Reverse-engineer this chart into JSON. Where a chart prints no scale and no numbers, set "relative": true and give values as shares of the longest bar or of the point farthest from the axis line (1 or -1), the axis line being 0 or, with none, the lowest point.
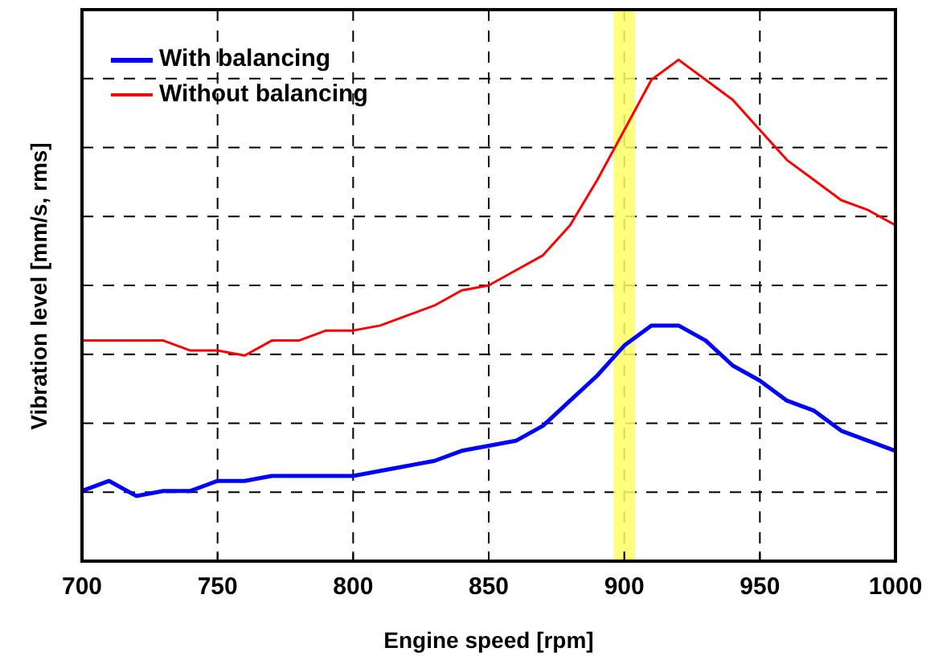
{
  "chart_data": {
    "type": "line",
    "relative": true,
    "xlabel": "Engine speed [rpm]",
    "ylabel": "Vibration level [mm/s, rms]",
    "x": [
      700,
      710,
      720,
      730,
      740,
      750,
      760,
      770,
      780,
      790,
      800,
      810,
      820,
      830,
      840,
      850,
      860,
      870,
      880,
      890,
      900,
      910,
      920,
      930,
      940,
      950,
      960,
      970,
      980,
      990,
      1000
    ],
    "xlim": [
      700,
      1000
    ],
    "xticks": [
      700,
      750,
      800,
      850,
      900,
      950,
      1000
    ],
    "series": [
      {
        "name": "With balancing",
        "color": "#0000ff",
        "values": [
          0.14,
          0.16,
          0.13,
          0.14,
          0.14,
          0.16,
          0.16,
          0.17,
          0.17,
          0.17,
          0.17,
          0.18,
          0.19,
          0.2,
          0.22,
          0.23,
          0.24,
          0.27,
          0.32,
          0.37,
          0.43,
          0.47,
          0.47,
          0.44,
          0.39,
          0.36,
          0.32,
          0.3,
          0.26,
          0.24,
          0.22
        ]
      },
      {
        "name": "Without balancing",
        "color": "#ff0000",
        "values": [
          0.44,
          0.44,
          0.44,
          0.44,
          0.42,
          0.42,
          0.41,
          0.44,
          0.44,
          0.46,
          0.46,
          0.47,
          0.49,
          0.51,
          0.54,
          0.55,
          0.58,
          0.61,
          0.67,
          0.76,
          0.86,
          0.96,
          1,
          0.96,
          0.92,
          0.86,
          0.8,
          0.76,
          0.72,
          0.7,
          0.67
        ]
      }
    ],
    "bands": [
      {
        "axis": "x",
        "from": 896,
        "to": 904,
        "color": "#ffff66"
      }
    ],
    "grid": true,
    "legend": "top left",
    "line_style": "solid",
    "marker": "none"
  }
}
